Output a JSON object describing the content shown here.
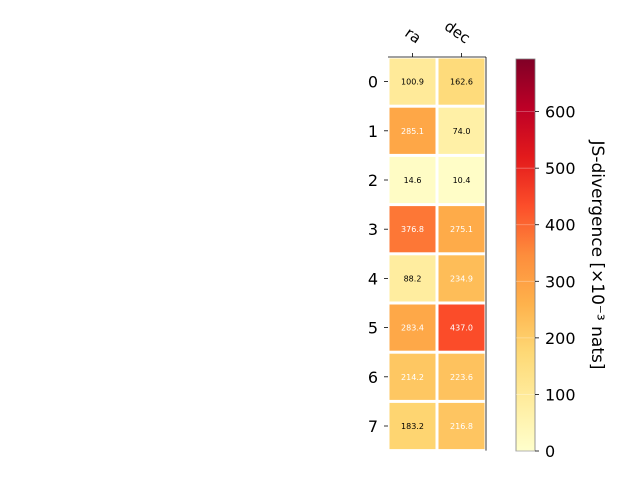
{
  "chart_data": {
    "type": "heatmap",
    "columns": [
      "ra",
      "dec"
    ],
    "rows": [
      "0",
      "1",
      "2",
      "3",
      "4",
      "5",
      "6",
      "7"
    ],
    "values": [
      [
        100.9,
        162.6
      ],
      [
        285.1,
        74.0
      ],
      [
        14.6,
        10.4
      ],
      [
        376.8,
        275.1
      ],
      [
        88.2,
        234.9
      ],
      [
        283.4,
        437.0
      ],
      [
        214.2,
        223.6
      ],
      [
        183.2,
        216.8
      ]
    ],
    "cell_labels": [
      [
        "100.9",
        "162.6"
      ],
      [
        "285.1",
        "74.0"
      ],
      [
        "14.6",
        "10.4"
      ],
      [
        "376.8",
        "275.1"
      ],
      [
        "88.2",
        "234.9"
      ],
      [
        "283.4",
        "437.0"
      ],
      [
        "214.2",
        "223.6"
      ],
      [
        "183.2",
        "216.8"
      ]
    ],
    "colorbar": {
      "label": "JS-divergence [×10⁻³ nats]",
      "range": [
        0,
        693
      ],
      "ticks": [
        0,
        100,
        200,
        300,
        400,
        500,
        600
      ],
      "tick_labels": [
        "0",
        "100",
        "200",
        "300",
        "400",
        "500",
        "600"
      ],
      "colormap": "YlOrRd"
    },
    "colormap_stops": [
      "#ffffcc",
      "#ffeda0",
      "#fed976",
      "#feb24c",
      "#fd8d3c",
      "#fc4e2a",
      "#e31a1c",
      "#bd0026",
      "#800026"
    ],
    "text_color_dark": "#000000",
    "text_color_light": "#ffffff"
  }
}
